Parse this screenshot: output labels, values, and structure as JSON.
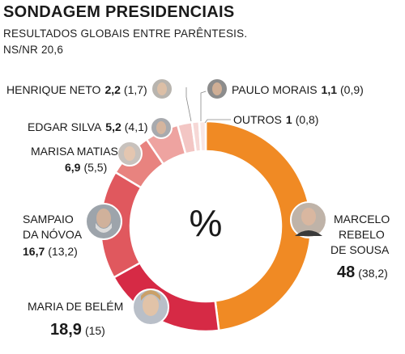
{
  "title": "SONDAGEM PRESIDENCIAIS",
  "subtitle_line1": "RESULTADOS  GLOBAIS ENTRE  PARÊNTESIS.",
  "subtitle_line2": "NS/NR 20,6",
  "center_symbol": "%",
  "colors": {
    "marcelo": "#f08a24",
    "maria_belem": "#d62a45",
    "sampaio": "#e0585e",
    "marisa": "#e8837f",
    "edgar": "#eea3a0",
    "henrique": "#f3c6c4",
    "paulo": "#f6d8d6",
    "outros": "#f9e6e4"
  },
  "chart_data": {
    "type": "pie",
    "donut": true,
    "categories": [
      "MARCELO REBELO DE SOUSA",
      "MARIA DE BELÉM",
      "SAMPAIO DA NÓVOA",
      "MARISA MATIAS",
      "EDGAR SILVA",
      "HENRIQUE NETO",
      "PAULO MORAIS",
      "OUTROS"
    ],
    "values": [
      48,
      18.9,
      16.7,
      6.9,
      5.2,
      2.2,
      1.1,
      1
    ],
    "value_labels": [
      "48",
      "18,9",
      "16,7",
      "6,9",
      "5,2",
      "2,2",
      "1,1",
      "1"
    ],
    "global_labels": [
      "(38,2)",
      "(15)",
      "(13,2)",
      "(5,5)",
      "(4,1)",
      "(1,7)",
      "(0,9)",
      "(0,8)"
    ]
  },
  "labels": {
    "marcelo": [
      "MARCELO",
      "REBELO",
      "DE SOUSA"
    ],
    "maria_belem": "MARIA DE BELÉM",
    "sampaio": [
      "SAMPAIO",
      "DA NÓVOA"
    ],
    "marisa": "MARISA MATIAS",
    "edgar": "EDGAR SILVA",
    "henrique": "HENRIQUE NETO",
    "paulo": "PAULO MORAIS",
    "outros": "OUTROS"
  }
}
